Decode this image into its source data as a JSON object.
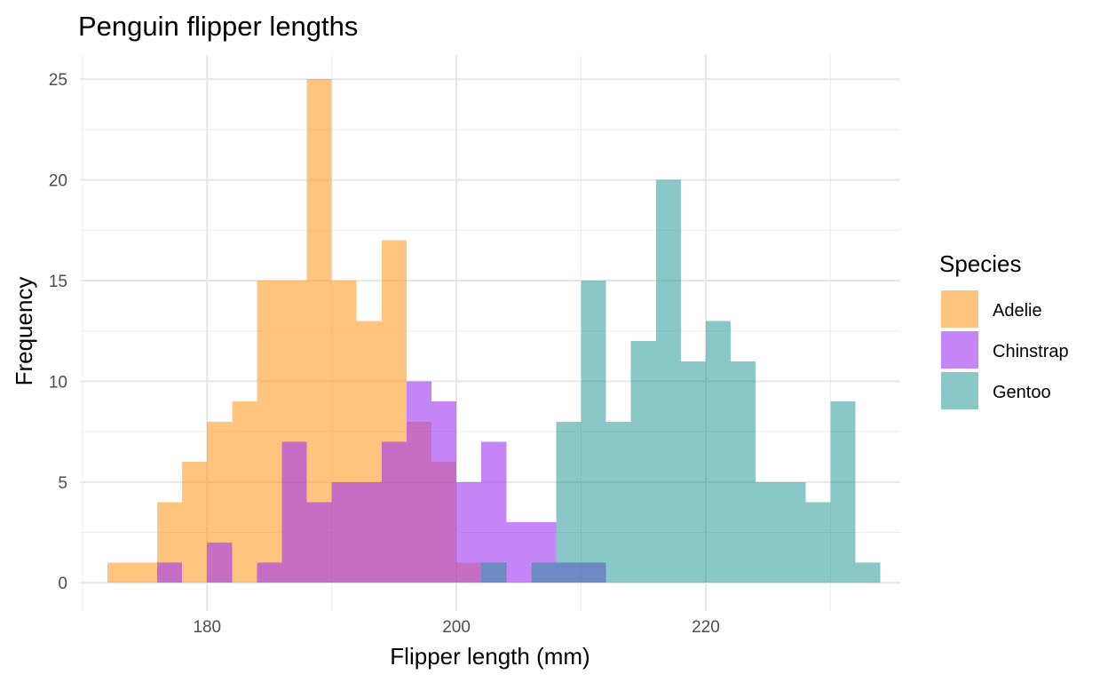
{
  "chart_data": {
    "type": "bar",
    "title": "Penguin flipper lengths",
    "xlabel": "Flipper length (mm)",
    "ylabel": "Frequency",
    "xlim": [
      169.8,
      235.6
    ],
    "ylim": [
      -1.4,
      26.2
    ],
    "x_ticks": [
      180,
      200,
      220
    ],
    "y_ticks": [
      0,
      5,
      10,
      15,
      20,
      25
    ],
    "grid": true,
    "legend": {
      "title": "Species",
      "placement": "right"
    },
    "bin_width": 2,
    "series": [
      {
        "name": "Adelie",
        "color": "#FF8C00",
        "opacity": 0.5,
        "bins": [
          {
            "x0": 172,
            "x1": 174,
            "count": 1
          },
          {
            "x0": 174,
            "x1": 176,
            "count": 1
          },
          {
            "x0": 176,
            "x1": 178,
            "count": 4
          },
          {
            "x0": 178,
            "x1": 180,
            "count": 6
          },
          {
            "x0": 180,
            "x1": 182,
            "count": 8
          },
          {
            "x0": 182,
            "x1": 184,
            "count": 9
          },
          {
            "x0": 184,
            "x1": 186,
            "count": 15
          },
          {
            "x0": 186,
            "x1": 188,
            "count": 15
          },
          {
            "x0": 188,
            "x1": 190,
            "count": 25
          },
          {
            "x0": 190,
            "x1": 192,
            "count": 15
          },
          {
            "x0": 192,
            "x1": 194,
            "count": 13
          },
          {
            "x0": 194,
            "x1": 196,
            "count": 17
          },
          {
            "x0": 196,
            "x1": 198,
            "count": 8
          },
          {
            "x0": 198,
            "x1": 200,
            "count": 6
          },
          {
            "x0": 200,
            "x1": 202,
            "count": 1
          }
        ]
      },
      {
        "name": "Chinstrap",
        "color": "#A034F0",
        "opacity": 0.6,
        "bins": [
          {
            "x0": 176,
            "x1": 178,
            "count": 1
          },
          {
            "x0": 180,
            "x1": 182,
            "count": 2
          },
          {
            "x0": 184,
            "x1": 186,
            "count": 1
          },
          {
            "x0": 186,
            "x1": 188,
            "count": 7
          },
          {
            "x0": 188,
            "x1": 190,
            "count": 4
          },
          {
            "x0": 190,
            "x1": 192,
            "count": 5
          },
          {
            "x0": 192,
            "x1": 194,
            "count": 5
          },
          {
            "x0": 194,
            "x1": 196,
            "count": 7
          },
          {
            "x0": 196,
            "x1": 198,
            "count": 10
          },
          {
            "x0": 198,
            "x1": 200,
            "count": 9
          },
          {
            "x0": 200,
            "x1": 202,
            "count": 5
          },
          {
            "x0": 202,
            "x1": 204,
            "count": 7
          },
          {
            "x0": 204,
            "x1": 206,
            "count": 3
          },
          {
            "x0": 206,
            "x1": 208,
            "count": 3
          },
          {
            "x0": 208,
            "x1": 210,
            "count": 1
          },
          {
            "x0": 210,
            "x1": 212,
            "count": 1
          }
        ]
      },
      {
        "name": "Gentoo",
        "color": "#159090",
        "opacity": 0.5,
        "bins": [
          {
            "x0": 202,
            "x1": 204,
            "count": 1
          },
          {
            "x0": 206,
            "x1": 208,
            "count": 1
          },
          {
            "x0": 208,
            "x1": 210,
            "count": 8
          },
          {
            "x0": 210,
            "x1": 212,
            "count": 15
          },
          {
            "x0": 212,
            "x1": 214,
            "count": 8
          },
          {
            "x0": 214,
            "x1": 216,
            "count": 12
          },
          {
            "x0": 216,
            "x1": 218,
            "count": 20
          },
          {
            "x0": 218,
            "x1": 220,
            "count": 11
          },
          {
            "x0": 220,
            "x1": 222,
            "count": 13
          },
          {
            "x0": 222,
            "x1": 224,
            "count": 11
          },
          {
            "x0": 224,
            "x1": 226,
            "count": 5
          },
          {
            "x0": 226,
            "x1": 228,
            "count": 5
          },
          {
            "x0": 228,
            "x1": 230,
            "count": 4
          },
          {
            "x0": 230,
            "x1": 232,
            "count": 9
          },
          {
            "x0": 232,
            "x1": 234,
            "count": 1
          }
        ]
      }
    ]
  }
}
